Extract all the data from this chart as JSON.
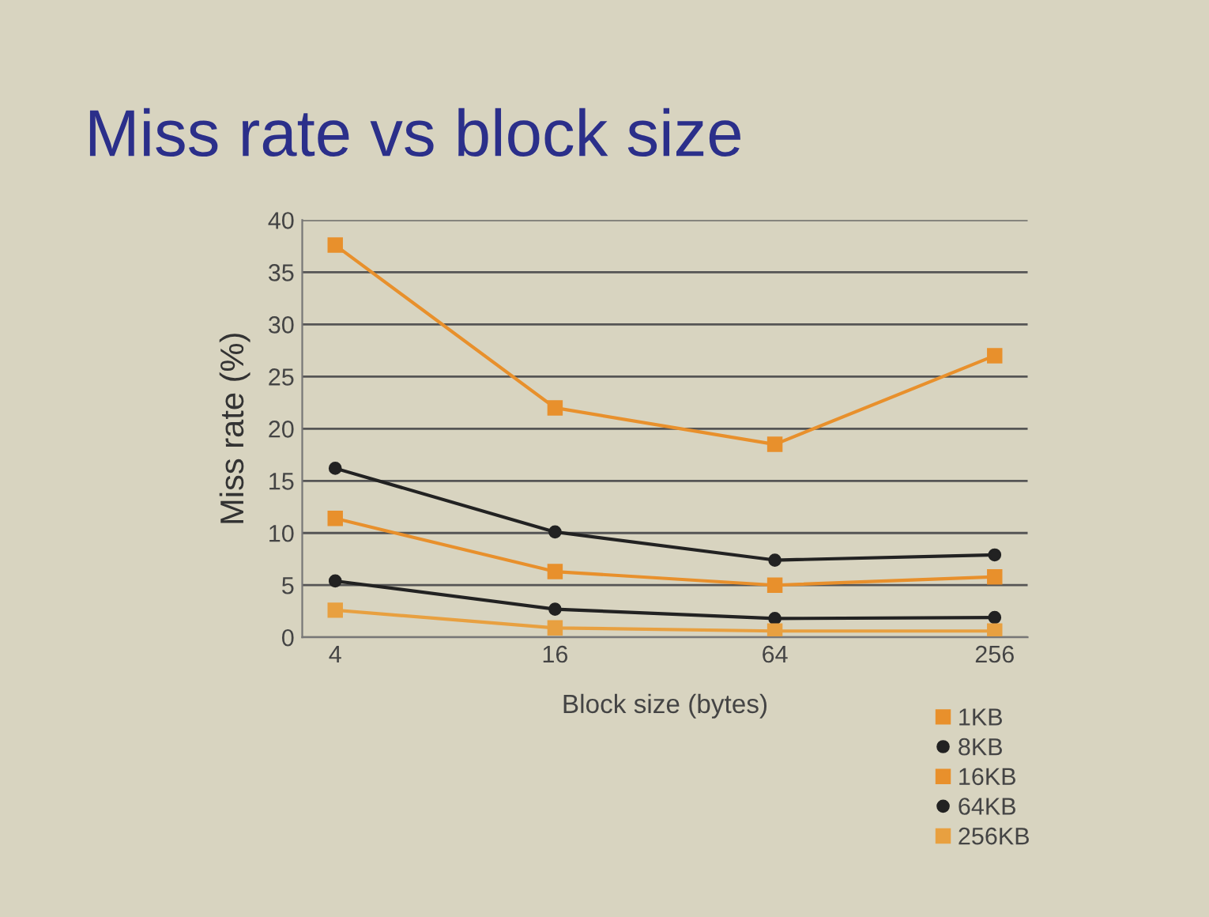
{
  "chart_data": {
    "type": "line",
    "title": "Miss rate vs block size",
    "xlabel": "Block size (bytes)",
    "ylabel": "Miss rate (%)",
    "categories": [
      "4",
      "16",
      "64",
      "256"
    ],
    "series": [
      {
        "name": "1KB",
        "color": "#e8902c",
        "marker": "square",
        "values": [
          37.6,
          22.0,
          18.5,
          27.0
        ]
      },
      {
        "name": "8KB",
        "color": "#222222",
        "marker": "circle",
        "values": [
          16.2,
          10.1,
          7.4,
          7.9
        ]
      },
      {
        "name": "16KB",
        "color": "#e8902c",
        "marker": "square",
        "values": [
          11.4,
          6.3,
          5.0,
          5.8
        ]
      },
      {
        "name": "64KB",
        "color": "#222222",
        "marker": "circle",
        "values": [
          5.4,
          2.7,
          1.8,
          1.9
        ]
      },
      {
        "name": "256KB",
        "color": "#e8a040",
        "marker": "square",
        "values": [
          2.6,
          0.9,
          0.6,
          0.6
        ]
      }
    ],
    "ylim": [
      0,
      40
    ],
    "yticks": [
      0,
      5,
      10,
      15,
      20,
      25,
      30,
      35,
      40
    ],
    "grid": "y",
    "legend": "bottom right"
  }
}
